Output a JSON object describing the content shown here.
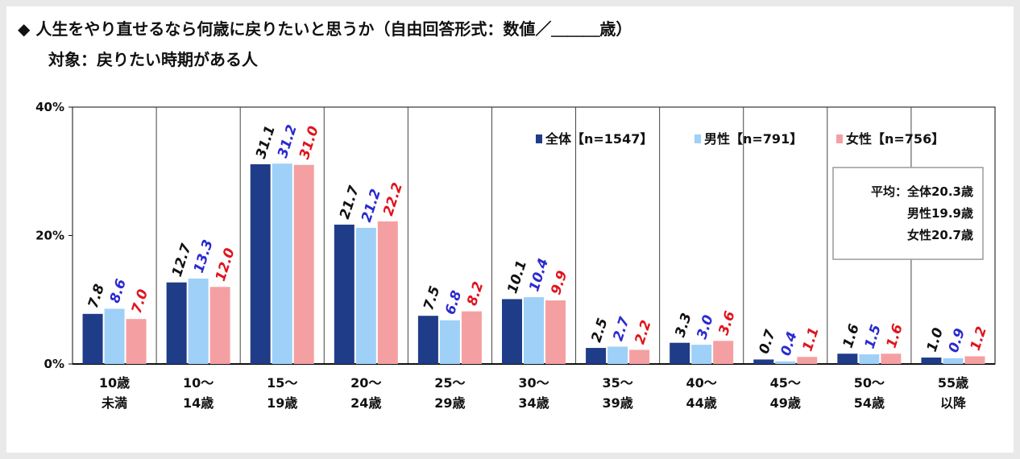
{
  "title": "◆ 人生をやり直せるなら何歳に戻りたいと思うか（自由回答形式：数値／＿＿＿歳）",
  "subtitle": "対象：戻りたい時期がある人",
  "average_box": {
    "lines": [
      "平均：全体20.3歳",
      "男性19.9歳",
      "女性20.7歳"
    ]
  },
  "chart_data": {
    "type": "bar",
    "y_ticks": [
      "0%",
      "20%",
      "40%"
    ],
    "ylim": [
      0,
      40
    ],
    "grid": false,
    "legend_position": "top-right",
    "categories": [
      [
        "10歳",
        "未満"
      ],
      [
        "10～",
        "14歳"
      ],
      [
        "15～",
        "19歳"
      ],
      [
        "20～",
        "24歳"
      ],
      [
        "25～",
        "29歳"
      ],
      [
        "30～",
        "34歳"
      ],
      [
        "35～",
        "39歳"
      ],
      [
        "40～",
        "44歳"
      ],
      [
        "45～",
        "49歳"
      ],
      [
        "50～",
        "54歳"
      ],
      [
        "55歳",
        "以降"
      ]
    ],
    "series": [
      {
        "name": "全体【n=1547】",
        "color": "#1f3c88",
        "label_color": "#111111",
        "values": [
          7.8,
          12.7,
          31.1,
          21.7,
          7.5,
          10.1,
          2.5,
          3.3,
          0.7,
          1.6,
          1.0
        ]
      },
      {
        "name": "男性【n=791】",
        "color": "#9fd0f7",
        "label_color": "#2a2ad0",
        "values": [
          8.6,
          13.3,
          31.2,
          21.2,
          6.8,
          10.4,
          2.7,
          3.0,
          0.4,
          1.5,
          0.9
        ]
      },
      {
        "name": "女性【n=756】",
        "color": "#f4a0a2",
        "label_color": "#e0131d",
        "values": [
          7.0,
          12.0,
          31.0,
          22.2,
          8.2,
          9.9,
          2.2,
          3.6,
          1.1,
          1.6,
          1.2
        ]
      }
    ]
  }
}
